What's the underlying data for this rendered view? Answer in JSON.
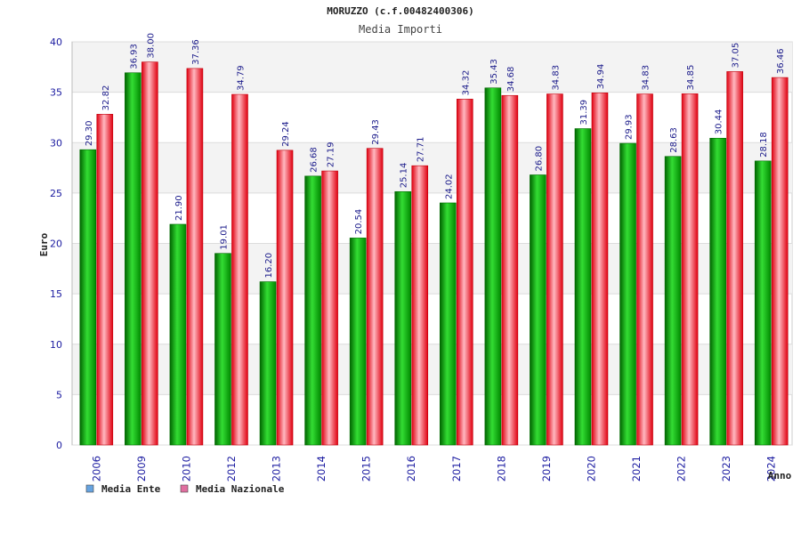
{
  "chart_data": {
    "type": "bar",
    "title": "MORUZZO (c.f.00482400306)",
    "subtitle": "Media Importi",
    "xlabel": "Anno",
    "ylabel": "Euro",
    "ylim": [
      0,
      40
    ],
    "yticks": [
      0,
      5,
      10,
      15,
      20,
      25,
      30,
      35,
      40
    ],
    "grid": true,
    "legend_position": "bottom-left",
    "categories": [
      "2006",
      "2009",
      "2010",
      "2012",
      "2013",
      "2014",
      "2015",
      "2016",
      "2017",
      "2018",
      "2019",
      "2020",
      "2021",
      "2022",
      "2023",
      "2024"
    ],
    "series": [
      {
        "name": "Media Ente",
        "color": "#00a000",
        "legend_color": "#66a3e0",
        "values": [
          29.3,
          36.93,
          21.9,
          19.01,
          16.2,
          26.68,
          20.54,
          25.14,
          24.02,
          35.43,
          26.8,
          31.39,
          29.93,
          28.63,
          30.44,
          28.18
        ],
        "labels": [
          "29.30",
          "36.93",
          "21.90",
          "19.01",
          "16.20",
          "26.68",
          "20.54",
          "25.14",
          "24.02",
          "35.43",
          "26.80",
          "31.39",
          "29.93",
          "28.63",
          "30.44",
          "28.18"
        ]
      },
      {
        "name": "Media Nazionale",
        "color": "#e00010",
        "legend_color": "#e06fa0",
        "values": [
          32.82,
          38.0,
          37.36,
          34.79,
          29.24,
          27.19,
          29.43,
          27.71,
          34.32,
          34.68,
          34.83,
          34.94,
          34.83,
          34.85,
          37.05,
          36.46
        ],
        "labels": [
          "32.82",
          "38.00",
          "37.36",
          "34.79",
          "29.24",
          "27.19",
          "29.43",
          "27.71",
          "34.32",
          "34.68",
          "34.83",
          "34.94",
          "34.83",
          "34.85",
          "37.05",
          "36.46"
        ]
      }
    ]
  }
}
